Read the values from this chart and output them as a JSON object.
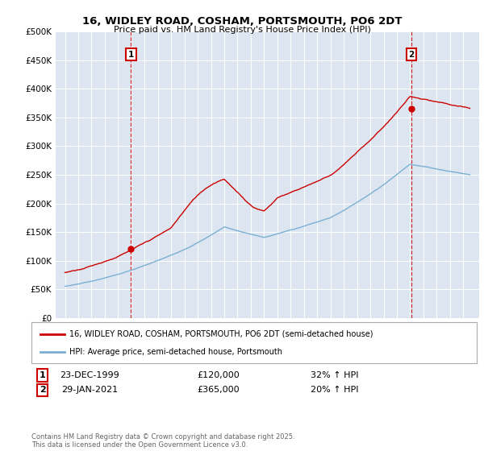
{
  "title": "16, WIDLEY ROAD, COSHAM, PORTSMOUTH, PO6 2DT",
  "subtitle": "Price paid vs. HM Land Registry's House Price Index (HPI)",
  "ylim": [
    0,
    500000
  ],
  "yticks": [
    0,
    50000,
    100000,
    150000,
    200000,
    250000,
    300000,
    350000,
    400000,
    450000,
    500000
  ],
  "background_color": "#dde6f0",
  "red_color": "#cc0000",
  "blue_color": "#7aafd4",
  "legend_label_red": "16, WIDLEY ROAD, COSHAM, PORTSMOUTH, PO6 2DT (semi-detached house)",
  "legend_label_blue": "HPI: Average price, semi-detached house, Portsmouth",
  "annotation1_date": "23-DEC-1999",
  "annotation1_price": "£120,000",
  "annotation1_hpi": "32% ↑ HPI",
  "annotation2_date": "29-JAN-2021",
  "annotation2_price": "£365,000",
  "annotation2_hpi": "20% ↑ HPI",
  "footer": "Contains HM Land Registry data © Crown copyright and database right 2025.\nThis data is licensed under the Open Government Licence v3.0.",
  "sale1_year": 1999.97,
  "sale1_price": 120000,
  "sale2_year": 2021.08,
  "sale2_price": 365000
}
